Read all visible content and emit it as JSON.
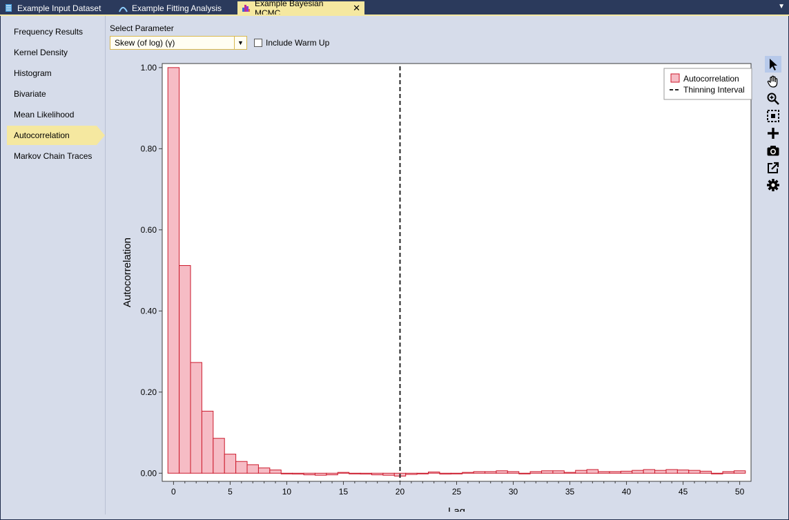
{
  "tabs": [
    {
      "label": "Example Input Dataset",
      "icon": "dataset-icon",
      "active": false
    },
    {
      "label": "Example Fitting Analysis",
      "icon": "fitting-curve-icon",
      "active": false
    },
    {
      "label": "Example Bayesian MCMC",
      "icon": "mcmc-histogram-icon",
      "active": true,
      "closable": true
    }
  ],
  "sidebar": {
    "items": [
      {
        "label": "Frequency Results"
      },
      {
        "label": "Kernel Density"
      },
      {
        "label": "Histogram"
      },
      {
        "label": "Bivariate"
      },
      {
        "label": "Mean Likelihood"
      },
      {
        "label": "Autocorrelation",
        "active": true
      },
      {
        "label": "Markov Chain Traces"
      }
    ]
  },
  "controls": {
    "select_label": "Select Parameter",
    "selected_parameter": "Skew (of log) (γ)",
    "warmup_label": "Include Warm Up",
    "warmup_checked": false
  },
  "toolbar": {
    "tools": [
      "pointer-icon",
      "pan-hand-icon",
      "zoom-icon",
      "zoom-extents-icon",
      "add-icon",
      "camera-icon",
      "export-icon",
      "settings-gear-icon"
    ],
    "active_tool": "pointer-icon"
  },
  "colors": {
    "bar_fill": "#f6bcc5",
    "bar_stroke": "#cc1a2c",
    "selection": "#f5e8a0",
    "tab_bar": "#2b3a5c",
    "panel": "#d6dcea"
  },
  "chart_data": {
    "type": "bar",
    "xlabel": "Lag",
    "ylabel": "Autocorrelation",
    "xlim": [
      -1,
      51
    ],
    "ylim": [
      -0.02,
      1.01
    ],
    "xticks": [
      0,
      5,
      10,
      15,
      20,
      25,
      30,
      35,
      40,
      45,
      50
    ],
    "yticks": [
      0.0,
      0.2,
      0.4,
      0.6,
      0.8,
      1.0
    ],
    "ytick_labels": [
      "0.00",
      "0.20",
      "0.40",
      "0.60",
      "0.80",
      "1.00"
    ],
    "grid": false,
    "legend": {
      "placement": "top-right",
      "entries": [
        "Autocorrelation",
        "Thinning Interval"
      ]
    },
    "series": [
      {
        "name": "Autocorrelation",
        "lags": [
          0,
          1,
          2,
          3,
          4,
          5,
          6,
          7,
          8,
          9,
          10,
          11,
          12,
          13,
          14,
          15,
          16,
          17,
          18,
          19,
          20,
          21,
          22,
          23,
          24,
          25,
          26,
          27,
          28,
          29,
          30,
          31,
          32,
          33,
          34,
          35,
          36,
          37,
          38,
          39,
          40,
          41,
          42,
          43,
          44,
          45,
          46,
          47,
          48,
          49,
          50
        ],
        "values": [
          1.0,
          0.512,
          0.273,
          0.153,
          0.086,
          0.047,
          0.029,
          0.021,
          0.013,
          0.008,
          0.0,
          -0.002,
          -0.004,
          -0.005,
          -0.004,
          0.002,
          0.0,
          -0.002,
          -0.004,
          -0.005,
          -0.007,
          -0.003,
          0.0,
          0.003,
          -0.002,
          0.0,
          0.002,
          0.004,
          0.004,
          0.006,
          0.004,
          0.0,
          0.004,
          0.006,
          0.006,
          0.002,
          0.007,
          0.009,
          0.004,
          0.004,
          0.005,
          0.007,
          0.009,
          0.007,
          0.009,
          0.008,
          0.007,
          0.005,
          0.0,
          0.004,
          0.006
        ]
      }
    ],
    "thinning_interval": 20
  }
}
